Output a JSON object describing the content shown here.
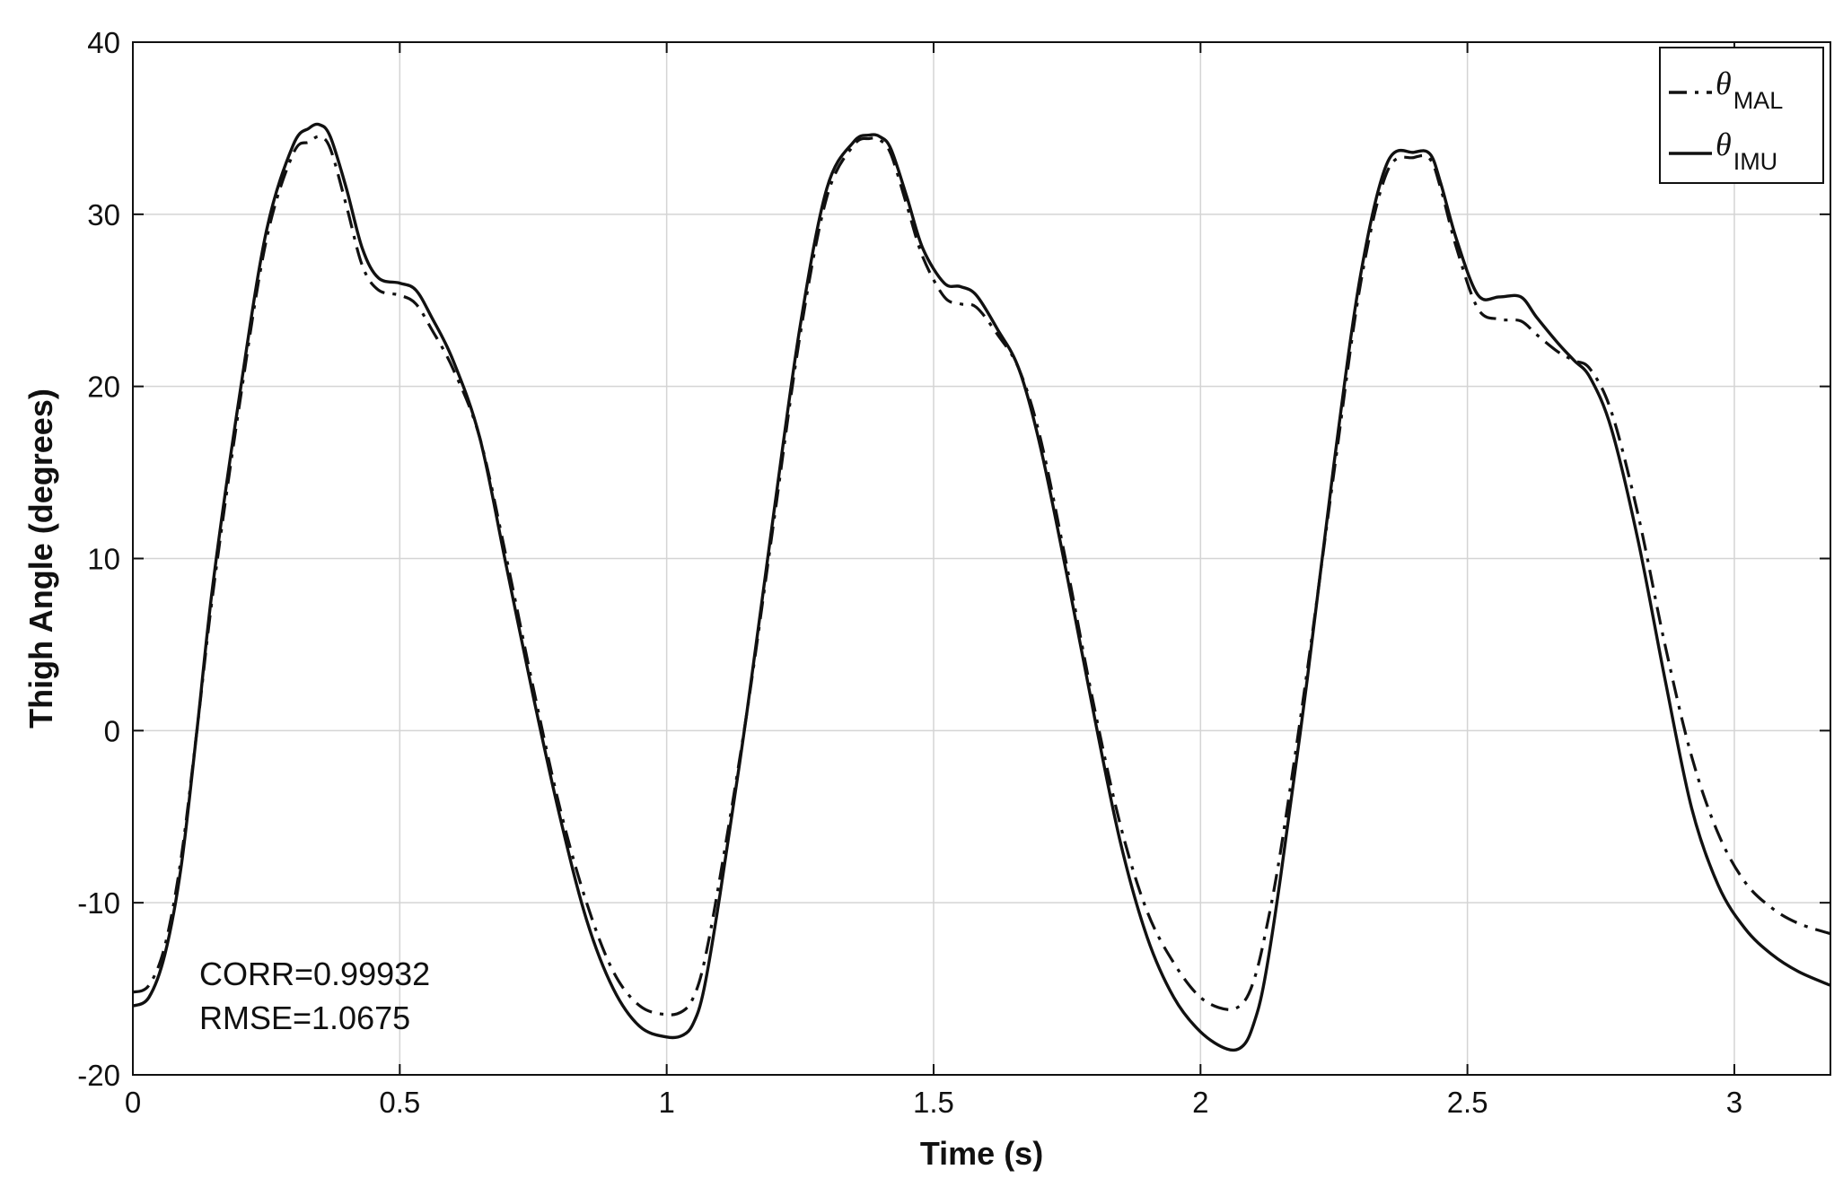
{
  "chart_data": {
    "type": "line",
    "title": "",
    "xlabel": "Time (s)",
    "ylabel": "Thigh Angle (degrees)",
    "xlim": [
      0,
      3.18
    ],
    "ylim": [
      -20,
      40
    ],
    "xticks": [
      0,
      0.5,
      1,
      1.5,
      2,
      2.5,
      3
    ],
    "xtick_labels": [
      "0",
      "0.5",
      "1",
      "1.5",
      "2",
      "2.5",
      "3"
    ],
    "yticks": [
      -20,
      -10,
      0,
      10,
      20,
      30,
      40
    ],
    "ytick_labels": [
      "-20",
      "-10",
      "0",
      "10",
      "20",
      "30",
      "40"
    ],
    "grid": true,
    "legend_position": "top-right",
    "annotations": [
      "CORR=0.99932",
      "RMSE=1.0675"
    ],
    "series": [
      {
        "name_symbol": "θ",
        "name_subscript": "MAL",
        "style": "dash-dot",
        "color": "#111111",
        "x": [
          0,
          0.03,
          0.06,
          0.09,
          0.12,
          0.15,
          0.2,
          0.25,
          0.3,
          0.33,
          0.35,
          0.37,
          0.4,
          0.43,
          0.46,
          0.5,
          0.53,
          0.56,
          0.6,
          0.65,
          0.7,
          0.75,
          0.8,
          0.85,
          0.9,
          0.95,
          1.0,
          1.03,
          1.05,
          1.07,
          1.1,
          1.15,
          1.2,
          1.25,
          1.3,
          1.35,
          1.38,
          1.4,
          1.42,
          1.45,
          1.48,
          1.52,
          1.55,
          1.58,
          1.62,
          1.66,
          1.7,
          1.75,
          1.8,
          1.85,
          1.9,
          1.95,
          2.0,
          2.05,
          2.08,
          2.1,
          2.12,
          2.15,
          2.2,
          2.25,
          2.3,
          2.35,
          2.4,
          2.43,
          2.45,
          2.48,
          2.52,
          2.56,
          2.6,
          2.63,
          2.67,
          2.7,
          2.73,
          2.77,
          2.82,
          2.87,
          2.92,
          2.97,
          3.02,
          3.07,
          3.12,
          3.18
        ],
        "y": [
          -15.2,
          -14.8,
          -12.5,
          -7.5,
          0,
          8,
          19,
          28.5,
          33.5,
          34.2,
          34.5,
          33.8,
          30.5,
          27,
          25.6,
          25.3,
          24.8,
          23.3,
          21,
          17,
          10,
          2.5,
          -4.5,
          -10,
          -14,
          -16,
          -16.5,
          -16.3,
          -15.5,
          -13.5,
          -8.5,
          1,
          12,
          23,
          31,
          34,
          34.4,
          34.3,
          33.5,
          30.5,
          27.5,
          25.2,
          24.8,
          24.6,
          23,
          21,
          17,
          9.5,
          1.5,
          -5.5,
          -10.5,
          -13.5,
          -15.5,
          -16.2,
          -15.8,
          -14.5,
          -12,
          -7,
          3.5,
          15,
          26,
          32.5,
          33.3,
          33.2,
          31.5,
          28,
          24.5,
          23.9,
          23.8,
          23,
          22,
          21.5,
          21,
          18.5,
          12.5,
          5,
          -1.5,
          -6,
          -8.8,
          -10.3,
          -11.2,
          -11.8
        ]
      },
      {
        "name_symbol": "θ",
        "name_subscript": "IMU",
        "style": "solid",
        "color": "#111111",
        "x": [
          0,
          0.03,
          0.06,
          0.09,
          0.12,
          0.15,
          0.2,
          0.25,
          0.3,
          0.33,
          0.35,
          0.37,
          0.4,
          0.43,
          0.46,
          0.5,
          0.53,
          0.56,
          0.6,
          0.65,
          0.7,
          0.75,
          0.8,
          0.85,
          0.9,
          0.95,
          1.0,
          1.03,
          1.05,
          1.07,
          1.1,
          1.15,
          1.2,
          1.25,
          1.3,
          1.35,
          1.38,
          1.4,
          1.42,
          1.45,
          1.48,
          1.52,
          1.55,
          1.58,
          1.62,
          1.66,
          1.7,
          1.75,
          1.8,
          1.85,
          1.9,
          1.95,
          2.0,
          2.05,
          2.08,
          2.1,
          2.12,
          2.15,
          2.2,
          2.25,
          2.3,
          2.35,
          2.4,
          2.43,
          2.45,
          2.48,
          2.52,
          2.56,
          2.6,
          2.63,
          2.67,
          2.7,
          2.73,
          2.77,
          2.82,
          2.87,
          2.92,
          2.97,
          3.02,
          3.07,
          3.12,
          3.18
        ],
        "y": [
          -16,
          -15.5,
          -13,
          -8,
          0,
          8.5,
          19.5,
          29,
          34,
          35,
          35.2,
          34.5,
          31.5,
          28,
          26.3,
          26,
          25.6,
          24,
          21.5,
          17,
          9.5,
          2,
          -5,
          -11,
          -15,
          -17.2,
          -17.8,
          -17.7,
          -17,
          -15,
          -9.5,
          1,
          12.5,
          23.5,
          31.5,
          34.2,
          34.6,
          34.5,
          33.8,
          31,
          28,
          26,
          25.8,
          25.3,
          23.3,
          21,
          16.5,
          9,
          1,
          -6.5,
          -12,
          -15.5,
          -17.5,
          -18.5,
          -18.3,
          -17,
          -14.5,
          -8.5,
          3,
          15.5,
          26.5,
          33,
          33.6,
          33.5,
          31.8,
          28.5,
          25.3,
          25.2,
          25.2,
          24,
          22.5,
          21.5,
          20.5,
          17.5,
          11,
          3,
          -4.5,
          -9,
          -11.5,
          -13,
          -14,
          -14.8
        ]
      }
    ]
  }
}
